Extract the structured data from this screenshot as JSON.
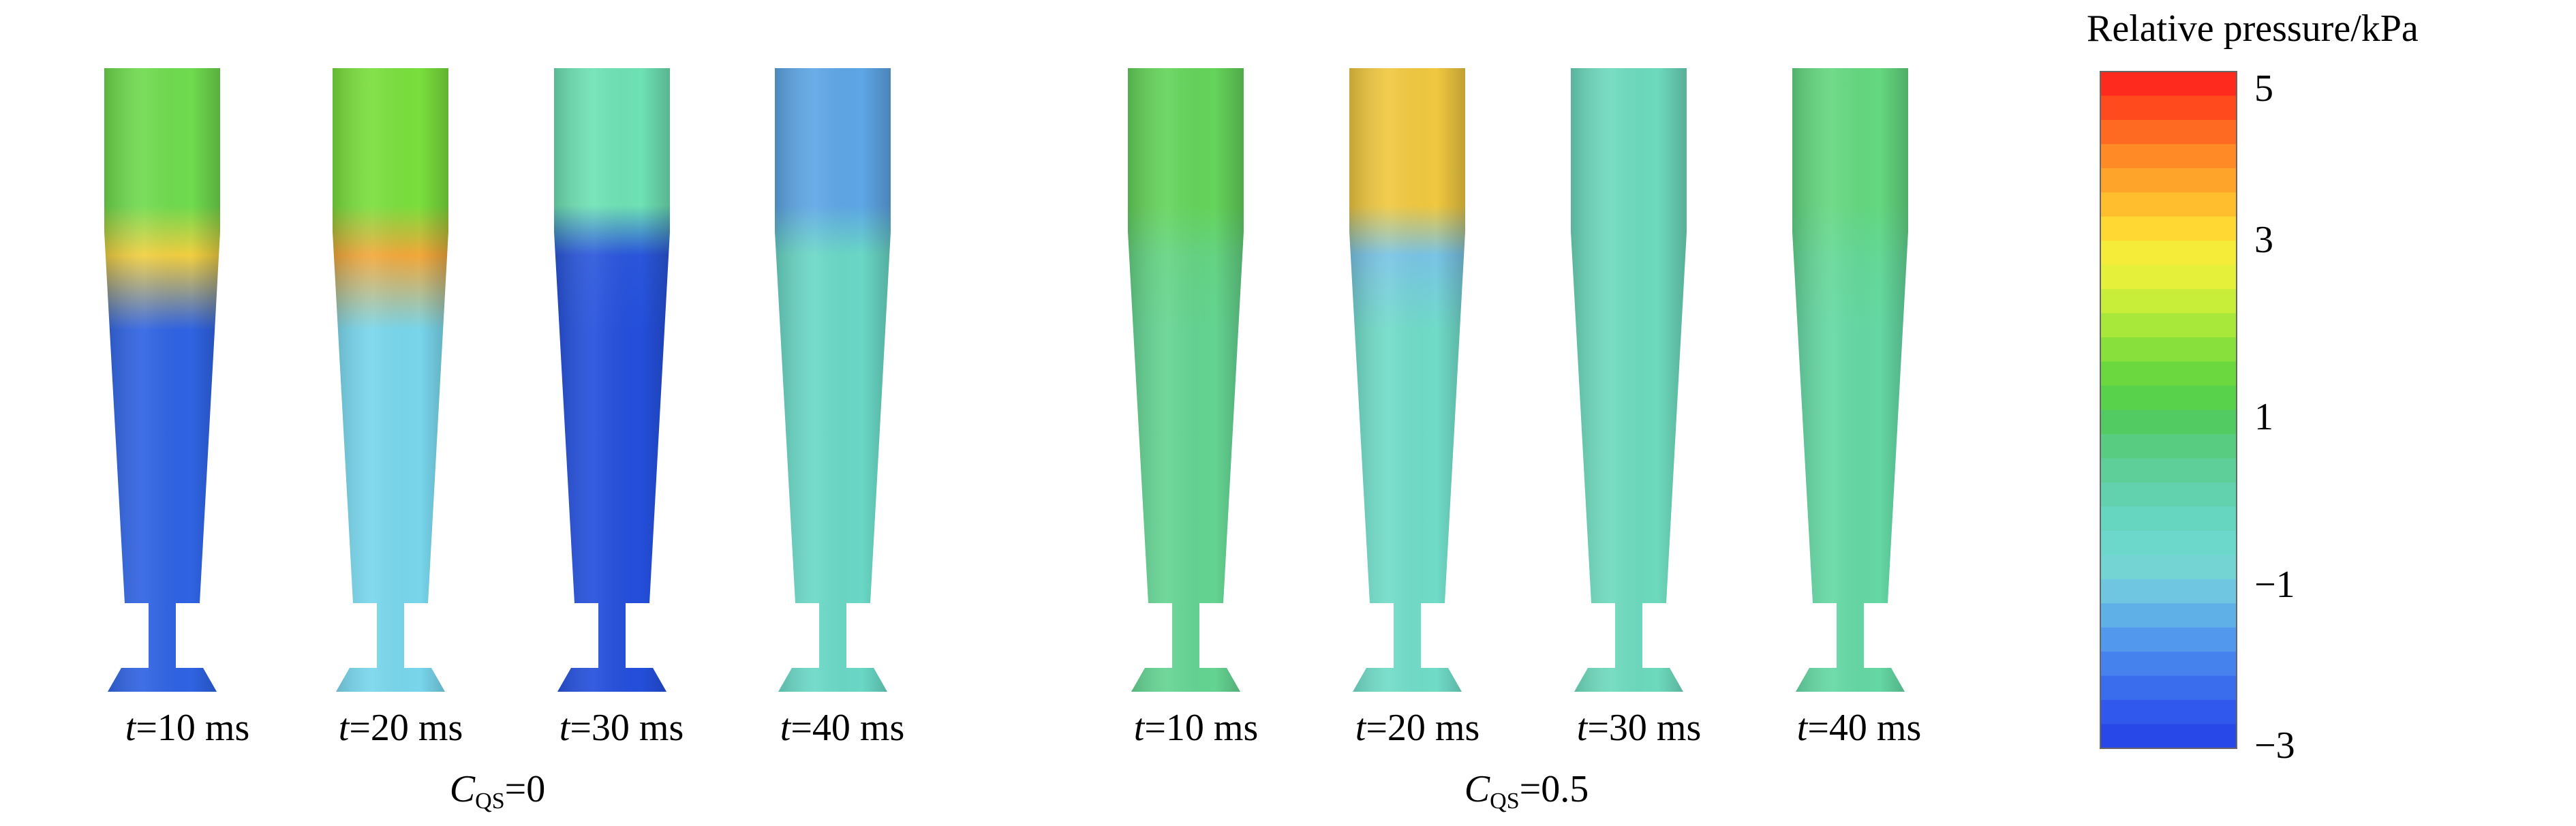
{
  "colorbar": {
    "title": "Relative pressure/kPa",
    "ticks": [
      "5",
      "3",
      "1",
      "−1",
      "−3"
    ],
    "colors": [
      "#ff2a1e",
      "#ff4a1e",
      "#ff6a22",
      "#ff8a26",
      "#ffa42a",
      "#ffbe2e",
      "#ffd834",
      "#f4ec38",
      "#e4f03a",
      "#c8ee3a",
      "#a8e83a",
      "#88e03c",
      "#6ad83e",
      "#58d24a",
      "#52cc62",
      "#58cc80",
      "#5ecf98",
      "#62d2ae",
      "#66d6c0",
      "#6cd8cc",
      "#74d4d4",
      "#6ec6e0",
      "#60b0e8",
      "#5298ec",
      "#4682ee",
      "#3a6cee",
      "#3058ec",
      "#2848e8"
    ]
  },
  "figure": {
    "groups": [
      {
        "param_symbol": "C",
        "param_sub": "QS",
        "param_value": "=0"
      },
      {
        "param_symbol": "C",
        "param_sub": "QS",
        "param_value": "=0.5"
      }
    ],
    "panels": [
      {
        "time_prefix": "t",
        "time_value": "=10 ms",
        "top_color": "#6fdb4e",
        "band_color": "#f2cf40",
        "bottom_color": "#2f63e3"
      },
      {
        "time_prefix": "t",
        "time_value": "=20 ms",
        "top_color": "#7adf3d",
        "band_color": "#f3a83a",
        "bottom_color": "#78d6ec"
      },
      {
        "time_prefix": "t",
        "time_value": "=30 ms",
        "top_color": "#6ee2b4",
        "band_color": "#2a56dc",
        "bottom_color": "#244fdc"
      },
      {
        "time_prefix": "t",
        "time_value": "=40 ms",
        "top_color": "#5ea6e6",
        "band_color": "#6ad8c6",
        "bottom_color": "#6ad8c6"
      },
      {
        "time_prefix": "t",
        "time_value": "=10 ms",
        "top_color": "#64d45a",
        "band_color": "#64d482",
        "bottom_color": "#64d492"
      },
      {
        "time_prefix": "t",
        "time_value": "=20 ms",
        "top_color": "#f0c840",
        "band_color": "#79c4e6",
        "bottom_color": "#70dcc8"
      },
      {
        "time_prefix": "t",
        "time_value": "=30 ms",
        "top_color": "#6ddabd",
        "band_color": "#6ddabd",
        "bottom_color": "#6ddabd"
      },
      {
        "time_prefix": "t",
        "time_value": "=40 ms",
        "top_color": "#64d880",
        "band_color": "#64d896",
        "bottom_color": "#64d8a4"
      }
    ]
  }
}
